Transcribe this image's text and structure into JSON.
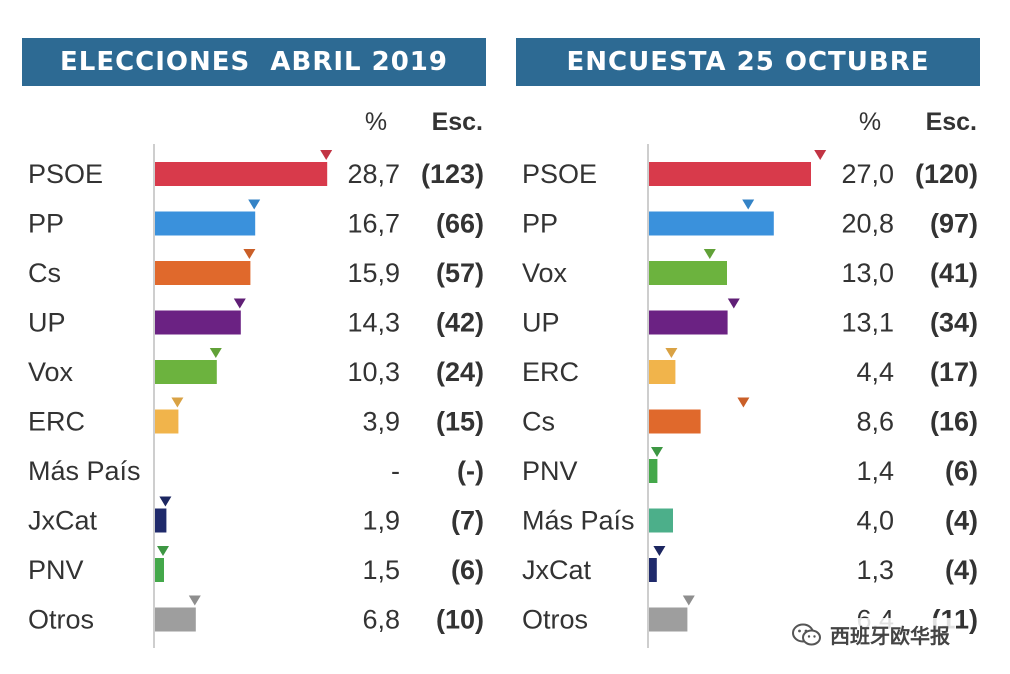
{
  "chart_data": [
    {
      "type": "bar",
      "title": "ELECCIONES  ABRIL 2019",
      "col_pct": "%",
      "col_seats": "Esc.",
      "categories": [
        "PSOE",
        "PP",
        "Cs",
        "UP",
        "Vox",
        "ERC",
        "Más País",
        "JxCat",
        "PNV",
        "Otros"
      ],
      "values": [
        28.7,
        16.7,
        15.9,
        14.3,
        10.3,
        3.9,
        null,
        1.9,
        1.5,
        6.8
      ],
      "pct_labels": [
        "28,7",
        "16,7",
        "15,9",
        "14,3",
        "10,3",
        "3,9",
        "-",
        "1,9",
        "1,5",
        "6,8"
      ],
      "seat_labels": [
        "(123)",
        "(66)",
        "(57)",
        "(42)",
        "(24)",
        "(15)",
        "(-)",
        "(7)",
        "(6)",
        "(10)"
      ],
      "marker_values": [
        28.7,
        16.7,
        15.9,
        14.3,
        10.3,
        3.9,
        null,
        1.9,
        1.5,
        6.8
      ],
      "xlim": [
        0,
        29
      ]
    },
    {
      "type": "bar",
      "title": "ENCUESTA 25 OCTUBRE",
      "col_pct": "%",
      "col_seats": "Esc.",
      "categories": [
        "PSOE",
        "PP",
        "Vox",
        "UP",
        "ERC",
        "Cs",
        "PNV",
        "Más País",
        "JxCat",
        "Otros"
      ],
      "values": [
        27.0,
        20.8,
        13.0,
        13.1,
        4.4,
        8.6,
        1.4,
        4.0,
        1.3,
        6.4
      ],
      "pct_labels": [
        "27,0",
        "20,8",
        "13,0",
        "13,1",
        "4,4",
        "8,6",
        "1,4",
        "4,0",
        "1,3",
        "6,4"
      ],
      "seat_labels": [
        "(120)",
        "(97)",
        "(41)",
        "(34)",
        "(17)",
        "(16)",
        "(6)",
        "(4)",
        "(4)",
        "(11)"
      ],
      "marker_values": [
        28.7,
        16.7,
        10.3,
        14.3,
        3.9,
        15.9,
        1.5,
        null,
        1.9,
        6.8
      ],
      "xlim": [
        0,
        29
      ]
    }
  ],
  "colors": {
    "header_bg": "#2d6a93",
    "PSOE": "#d83a4b",
    "PP": "#3a91dc",
    "Cs": "#e0692c",
    "UP": "#6b2283",
    "Vox": "#6cb33e",
    "ERC": "#f1b44b",
    "Más País": "#4caf8a",
    "JxCat": "#1f2a6b",
    "PNV": "#44a84a",
    "Otros": "#9e9e9e"
  },
  "watermark": {
    "icon": "wechat-icon",
    "text": "西班牙欧华报"
  }
}
